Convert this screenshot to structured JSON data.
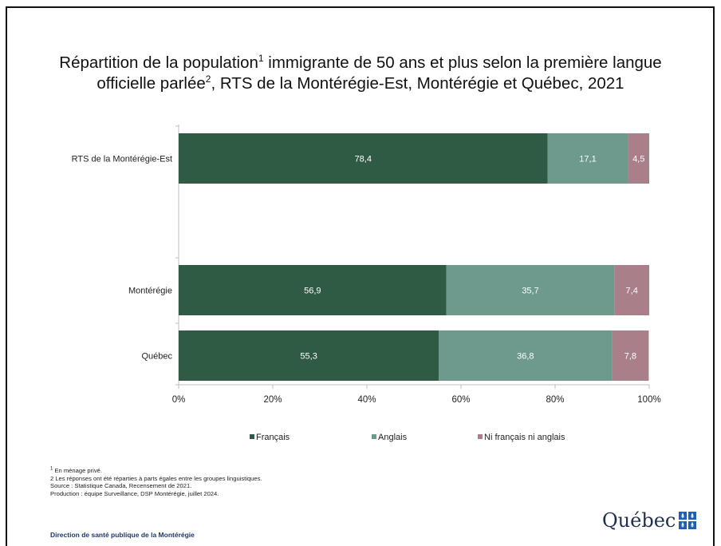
{
  "chart_data": {
    "type": "bar",
    "orientation": "horizontal",
    "stacked": true,
    "title": {
      "part1": "Répartition de la population",
      "sup1": "1",
      "part2": " immigrante de 50 ans et plus selon la première langue",
      "line2a": "officielle parlée",
      "sup2": "2",
      "line2b": ", RTS de la Montérégie-Est, Montérégie et Québec, 2021"
    },
    "categories": [
      "RTS de la Montérégie-Est",
      "Montérégie",
      "Québec"
    ],
    "series": [
      {
        "name": "Français",
        "color": "#2f5a43",
        "values": [
          78.4,
          56.9,
          55.3
        ],
        "labels": [
          "78,4",
          "56,9",
          "55,3"
        ]
      },
      {
        "name": "Anglais",
        "color": "#6e9a8e",
        "values": [
          17.1,
          35.7,
          36.8
        ],
        "labels": [
          "17,1",
          "35,7",
          "36,8"
        ]
      },
      {
        "name": "Ni français ni anglais",
        "color": "#a97f8a",
        "values": [
          4.5,
          7.4,
          7.8
        ],
        "labels": [
          "4,5",
          "7,4",
          "7,8"
        ]
      }
    ],
    "xlim": [
      0,
      100
    ],
    "x_ticks": [
      "0%",
      "20%",
      "40%",
      "60%",
      "80%",
      "100%"
    ],
    "legend_position": "bottom",
    "grid": false
  },
  "footnotes": {
    "note1_sup": "1",
    "note1": " En ménage privé.",
    "note2": "2 Les réponses ont été réparties à parts égales entre les groupes linguistiques.",
    "source": "Source : Statistique Canada, Recensement de 2021.",
    "production": "Production : équipe Surveillance, DSP Montérégie, juillet 2024."
  },
  "footer": {
    "organization": "Direction de santé publique de la Montérégie",
    "logo_text": "Québec"
  }
}
